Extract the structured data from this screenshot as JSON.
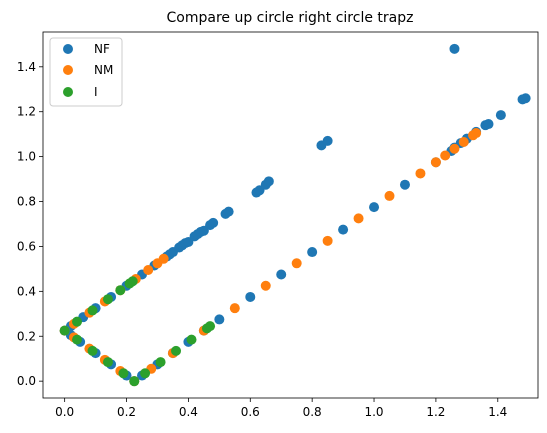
{
  "chart_data": {
    "type": "scatter",
    "title": "Compare up circle right circle trapz",
    "xlabel": "",
    "ylabel": "",
    "xlim": [
      -0.07,
      1.53
    ],
    "ylim": [
      -0.075,
      1.555
    ],
    "xticks": [
      0.0,
      0.2,
      0.4,
      0.6,
      0.8,
      1.0,
      1.2,
      1.4
    ],
    "xtick_labels": [
      "0.0",
      "0.2",
      "0.4",
      "0.6",
      "0.8",
      "1.0",
      "1.2",
      "1.4"
    ],
    "yticks": [
      0.0,
      0.2,
      0.4,
      0.6,
      0.8,
      1.0,
      1.2,
      1.4
    ],
    "ytick_labels": [
      "0.0",
      "0.2",
      "0.4",
      "0.6",
      "0.8",
      "1.0",
      "1.2",
      "1.4"
    ],
    "grid": false,
    "legend_position": "upper-left",
    "series": [
      {
        "name": "NF",
        "color": "#1f77b4",
        "points": [
          [
            0.0,
            0.225
          ],
          [
            0.02,
            0.205
          ],
          [
            0.05,
            0.175
          ],
          [
            0.1,
            0.125
          ],
          [
            0.15,
            0.075
          ],
          [
            0.2,
            0.025
          ],
          [
            0.225,
            0.0
          ],
          [
            0.25,
            0.025
          ],
          [
            0.3,
            0.075
          ],
          [
            0.35,
            0.125
          ],
          [
            0.4,
            0.175
          ],
          [
            0.45,
            0.225
          ],
          [
            0.5,
            0.275
          ],
          [
            0.6,
            0.375
          ],
          [
            0.7,
            0.475
          ],
          [
            0.8,
            0.575
          ],
          [
            0.9,
            0.675
          ],
          [
            1.0,
            0.775
          ],
          [
            1.1,
            0.875
          ],
          [
            1.2,
            0.975
          ],
          [
            1.25,
            1.025
          ],
          [
            0.02,
            0.245
          ],
          [
            0.06,
            0.285
          ],
          [
            0.1,
            0.325
          ],
          [
            0.15,
            0.375
          ],
          [
            0.2,
            0.425
          ],
          [
            0.25,
            0.475
          ],
          [
            0.29,
            0.515
          ],
          [
            0.33,
            0.555
          ],
          [
            0.34,
            0.565
          ],
          [
            0.35,
            0.575
          ],
          [
            0.37,
            0.595
          ],
          [
            0.38,
            0.605
          ],
          [
            0.39,
            0.615
          ],
          [
            0.4,
            0.62
          ],
          [
            0.42,
            0.645
          ],
          [
            0.43,
            0.655
          ],
          [
            0.44,
            0.665
          ],
          [
            0.45,
            0.67
          ],
          [
            0.47,
            0.695
          ],
          [
            0.48,
            0.705
          ],
          [
            0.52,
            0.745
          ],
          [
            0.53,
            0.755
          ],
          [
            0.62,
            0.84
          ],
          [
            0.63,
            0.85
          ],
          [
            0.65,
            0.875
          ],
          [
            0.66,
            0.89
          ],
          [
            0.83,
            1.05
          ],
          [
            0.85,
            1.07
          ],
          [
            1.26,
            1.04
          ],
          [
            1.28,
            1.06
          ],
          [
            1.3,
            1.08
          ],
          [
            1.33,
            1.11
          ],
          [
            1.36,
            1.14
          ],
          [
            1.37,
            1.145
          ],
          [
            1.41,
            1.185
          ],
          [
            1.48,
            1.255
          ],
          [
            1.49,
            1.26
          ],
          [
            1.26,
            1.48
          ]
        ]
      },
      {
        "name": "NM",
        "color": "#ff7f0e",
        "points": [
          [
            0.0,
            0.225
          ],
          [
            0.03,
            0.195
          ],
          [
            0.08,
            0.145
          ],
          [
            0.13,
            0.095
          ],
          [
            0.18,
            0.045
          ],
          [
            0.225,
            0.0
          ],
          [
            0.28,
            0.055
          ],
          [
            0.35,
            0.125
          ],
          [
            0.45,
            0.225
          ],
          [
            0.55,
            0.325
          ],
          [
            0.65,
            0.425
          ],
          [
            0.75,
            0.525
          ],
          [
            0.85,
            0.625
          ],
          [
            0.95,
            0.725
          ],
          [
            1.05,
            0.825
          ],
          [
            1.15,
            0.925
          ],
          [
            1.2,
            0.975
          ],
          [
            1.23,
            1.005
          ],
          [
            1.26,
            1.035
          ],
          [
            1.29,
            1.065
          ],
          [
            1.32,
            1.095
          ],
          [
            1.33,
            1.105
          ],
          [
            0.03,
            0.255
          ],
          [
            0.08,
            0.305
          ],
          [
            0.13,
            0.355
          ],
          [
            0.18,
            0.405
          ],
          [
            0.23,
            0.455
          ],
          [
            0.27,
            0.495
          ],
          [
            0.3,
            0.525
          ],
          [
            0.32,
            0.545
          ]
        ]
      },
      {
        "name": "I",
        "color": "#2ca02c",
        "points": [
          [
            0.0,
            0.225
          ],
          [
            0.04,
            0.185
          ],
          [
            0.09,
            0.135
          ],
          [
            0.14,
            0.085
          ],
          [
            0.19,
            0.035
          ],
          [
            0.225,
            0.0
          ],
          [
            0.26,
            0.035
          ],
          [
            0.31,
            0.085
          ],
          [
            0.36,
            0.135
          ],
          [
            0.41,
            0.185
          ],
          [
            0.46,
            0.235
          ],
          [
            0.47,
            0.245
          ],
          [
            0.04,
            0.265
          ],
          [
            0.09,
            0.315
          ],
          [
            0.14,
            0.365
          ],
          [
            0.18,
            0.405
          ],
          [
            0.21,
            0.435
          ],
          [
            0.22,
            0.445
          ]
        ]
      }
    ]
  }
}
